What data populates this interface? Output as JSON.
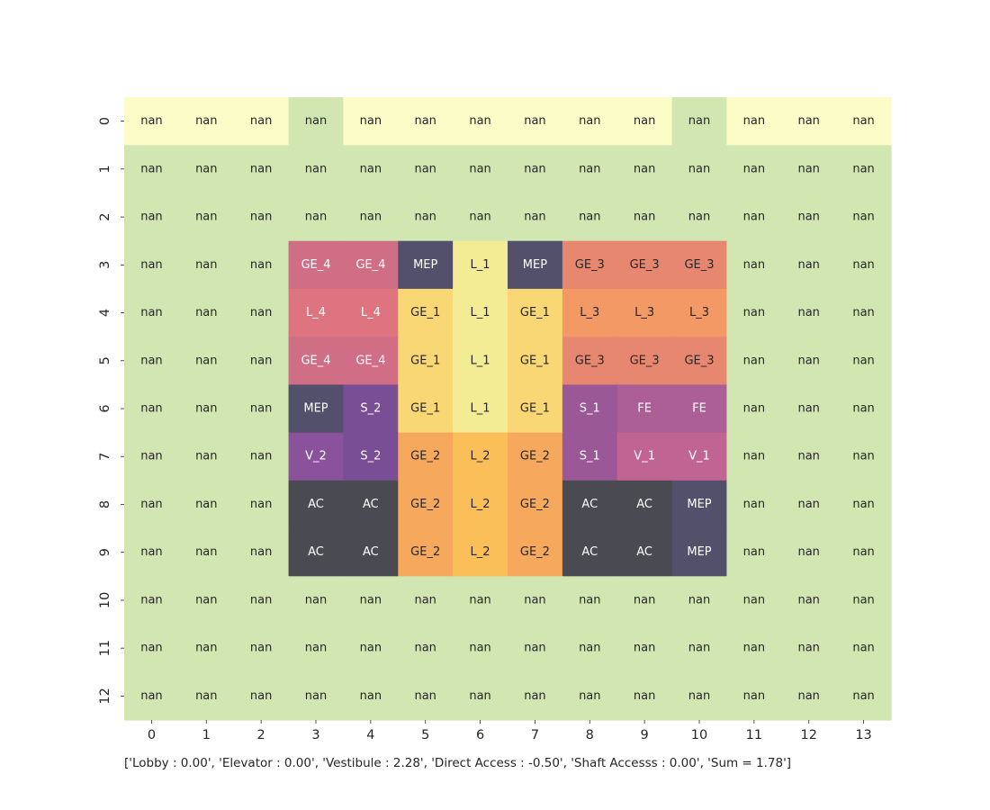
{
  "chart_data": {
    "type": "heatmap",
    "x_ticks": [
      "0",
      "1",
      "2",
      "3",
      "4",
      "5",
      "6",
      "7",
      "8",
      "9",
      "10",
      "11",
      "12",
      "13"
    ],
    "y_ticks": [
      "0",
      "1",
      "2",
      "3",
      "4",
      "5",
      "6",
      "7",
      "8",
      "9",
      "10",
      "11",
      "12"
    ],
    "cell_labels": [
      [
        "nan",
        "nan",
        "nan",
        "nan",
        "nan",
        "nan",
        "nan",
        "nan",
        "nan",
        "nan",
        "nan",
        "nan",
        "nan",
        "nan"
      ],
      [
        "nan",
        "nan",
        "nan",
        "nan",
        "nan",
        "nan",
        "nan",
        "nan",
        "nan",
        "nan",
        "nan",
        "nan",
        "nan",
        "nan"
      ],
      [
        "nan",
        "nan",
        "nan",
        "nan",
        "nan",
        "nan",
        "nan",
        "nan",
        "nan",
        "nan",
        "nan",
        "nan",
        "nan",
        "nan"
      ],
      [
        "nan",
        "nan",
        "nan",
        "GE_4",
        "GE_4",
        "MEP",
        "L_1",
        "MEP",
        "GE_3",
        "GE_3",
        "GE_3",
        "nan",
        "nan",
        "nan"
      ],
      [
        "nan",
        "nan",
        "nan",
        "L_4",
        "L_4",
        "GE_1",
        "L_1",
        "GE_1",
        "L_3",
        "L_3",
        "L_3",
        "nan",
        "nan",
        "nan"
      ],
      [
        "nan",
        "nan",
        "nan",
        "GE_4",
        "GE_4",
        "GE_1",
        "L_1",
        "GE_1",
        "GE_3",
        "GE_3",
        "GE_3",
        "nan",
        "nan",
        "nan"
      ],
      [
        "nan",
        "nan",
        "nan",
        "MEP",
        "S_2",
        "GE_1",
        "L_1",
        "GE_1",
        "S_1",
        "FE",
        "FE",
        "nan",
        "nan",
        "nan"
      ],
      [
        "nan",
        "nan",
        "nan",
        "V_2",
        "S_2",
        "GE_2",
        "L_2",
        "GE_2",
        "S_1",
        "V_1",
        "V_1",
        "nan",
        "nan",
        "nan"
      ],
      [
        "nan",
        "nan",
        "nan",
        "AC",
        "AC",
        "GE_2",
        "L_2",
        "GE_2",
        "AC",
        "AC",
        "MEP",
        "nan",
        "nan",
        "nan"
      ],
      [
        "nan",
        "nan",
        "nan",
        "AC",
        "AC",
        "GE_2",
        "L_2",
        "GE_2",
        "AC",
        "AC",
        "MEP",
        "nan",
        "nan",
        "nan"
      ],
      [
        "nan",
        "nan",
        "nan",
        "nan",
        "nan",
        "nan",
        "nan",
        "nan",
        "nan",
        "nan",
        "nan",
        "nan",
        "nan",
        "nan"
      ],
      [
        "nan",
        "nan",
        "nan",
        "nan",
        "nan",
        "nan",
        "nan",
        "nan",
        "nan",
        "nan",
        "nan",
        "nan",
        "nan",
        "nan"
      ],
      [
        "nan",
        "nan",
        "nan",
        "nan",
        "nan",
        "nan",
        "nan",
        "nan",
        "nan",
        "nan",
        "nan",
        "nan",
        "nan",
        "nan"
      ]
    ],
    "cell_colors": [
      [
        "#fbfcc8",
        "#fbfcc8",
        "#fbfcc8",
        "#d2e6b2",
        "#fbfcc8",
        "#fbfcc8",
        "#fbfcc8",
        "#fbfcc8",
        "#fbfcc8",
        "#fbfcc8",
        "#d2e6b2",
        "#fbfcc8",
        "#fbfcc8",
        "#fbfcc8"
      ],
      [
        "#d2e6b2",
        "#d2e6b2",
        "#d2e6b2",
        "#d2e6b2",
        "#d2e6b2",
        "#d2e6b2",
        "#d2e6b2",
        "#d2e6b2",
        "#d2e6b2",
        "#d2e6b2",
        "#d2e6b2",
        "#d2e6b2",
        "#d2e6b2",
        "#d2e6b2"
      ],
      [
        "#d2e6b2",
        "#d2e6b2",
        "#d2e6b2",
        "#d2e6b2",
        "#d2e6b2",
        "#d2e6b2",
        "#d2e6b2",
        "#d2e6b2",
        "#d2e6b2",
        "#d2e6b2",
        "#d2e6b2",
        "#d2e6b2",
        "#d2e6b2",
        "#d2e6b2"
      ],
      [
        "#d2e6b2",
        "#d2e6b2",
        "#d2e6b2",
        "#cf6e84",
        "#cf6e84",
        "#52506a",
        "#f3ec94",
        "#52506a",
        "#e8876f",
        "#e8876f",
        "#e8876f",
        "#d2e6b2",
        "#d2e6b2",
        "#d2e6b2"
      ],
      [
        "#d2e6b2",
        "#d2e6b2",
        "#d2e6b2",
        "#dd7480",
        "#dd7480",
        "#f9d774",
        "#f3ec94",
        "#f9d774",
        "#f29966",
        "#f29966",
        "#f29966",
        "#d2e6b2",
        "#d2e6b2",
        "#d2e6b2"
      ],
      [
        "#d2e6b2",
        "#d2e6b2",
        "#d2e6b2",
        "#cf6e84",
        "#cf6e84",
        "#f9d774",
        "#f3ec94",
        "#f9d774",
        "#e8876f",
        "#e8876f",
        "#e8876f",
        "#d2e6b2",
        "#d2e6b2",
        "#d2e6b2"
      ],
      [
        "#d2e6b2",
        "#d2e6b2",
        "#d2e6b2",
        "#52506a",
        "#794e94",
        "#f9d774",
        "#f3ec94",
        "#f9d774",
        "#9a5896",
        "#ac5e96",
        "#ac5e96",
        "#d2e6b2",
        "#d2e6b2",
        "#d2e6b2"
      ],
      [
        "#d2e6b2",
        "#d2e6b2",
        "#d2e6b2",
        "#89529a",
        "#794e94",
        "#f6a85c",
        "#fbbf59",
        "#f6a85c",
        "#9a5896",
        "#c06492",
        "#c06492",
        "#d2e6b2",
        "#d2e6b2",
        "#d2e6b2"
      ],
      [
        "#d2e6b2",
        "#d2e6b2",
        "#d2e6b2",
        "#4a4a52",
        "#4a4a52",
        "#f6a85c",
        "#fbbf59",
        "#f6a85c",
        "#4a4a52",
        "#4a4a52",
        "#52506a",
        "#d2e6b2",
        "#d2e6b2",
        "#d2e6b2"
      ],
      [
        "#d2e6b2",
        "#d2e6b2",
        "#d2e6b2",
        "#4a4a52",
        "#4a4a52",
        "#f6a85c",
        "#fbbf59",
        "#f6a85c",
        "#4a4a52",
        "#4a4a52",
        "#52506a",
        "#d2e6b2",
        "#d2e6b2",
        "#d2e6b2"
      ],
      [
        "#d2e6b2",
        "#d2e6b2",
        "#d2e6b2",
        "#d2e6b2",
        "#d2e6b2",
        "#d2e6b2",
        "#d2e6b2",
        "#d2e6b2",
        "#d2e6b2",
        "#d2e6b2",
        "#d2e6b2",
        "#d2e6b2",
        "#d2e6b2",
        "#d2e6b2"
      ],
      [
        "#d2e6b2",
        "#d2e6b2",
        "#d2e6b2",
        "#d2e6b2",
        "#d2e6b2",
        "#d2e6b2",
        "#d2e6b2",
        "#d2e6b2",
        "#d2e6b2",
        "#d2e6b2",
        "#d2e6b2",
        "#d2e6b2",
        "#d2e6b2",
        "#d2e6b2"
      ],
      [
        "#d2e6b2",
        "#d2e6b2",
        "#d2e6b2",
        "#d2e6b2",
        "#d2e6b2",
        "#d2e6b2",
        "#d2e6b2",
        "#d2e6b2",
        "#d2e6b2",
        "#d2e6b2",
        "#d2e6b2",
        "#d2e6b2",
        "#d2e6b2",
        "#d2e6b2"
      ]
    ],
    "dark_text_color": "#262626",
    "light_text_color": "#ffffff",
    "grid": false,
    "colorbar": false
  },
  "footer_text": "['Lobby : 0.00', 'Elevator : 0.00', 'Vestibule : 2.28', 'Direct Access : -0.50', 'Shaft Accesss : 0.00', 'Sum = 1.78']"
}
